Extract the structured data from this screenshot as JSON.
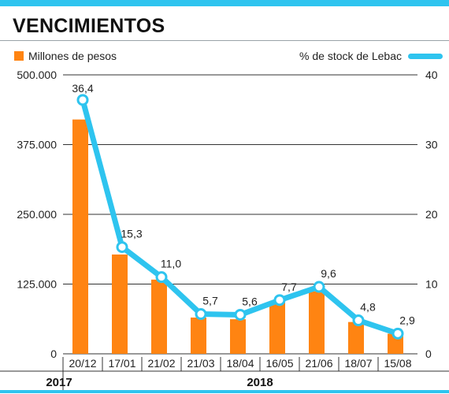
{
  "title": "VENCIMIENTOS",
  "legend": {
    "bars": "Millones de pesos",
    "line": "% de stock de Lebac"
  },
  "colors": {
    "accent": "#2ec4ef",
    "bar": "#ff8412",
    "grid": "#333333"
  },
  "chart_data": {
    "type": "bar",
    "categories": [
      "20/12",
      "17/01",
      "21/02",
      "21/03",
      "18/04",
      "16/05",
      "21/06",
      "18/07",
      "15/08"
    ],
    "series": [
      {
        "name": "Millones de pesos",
        "type": "bar",
        "axis": "left",
        "values": [
          420000,
          178000,
          133000,
          65000,
          62000,
          92000,
          112000,
          57000,
          36000
        ]
      },
      {
        "name": "% de stock de Lebac",
        "type": "line",
        "axis": "right",
        "values": [
          36.4,
          15.3,
          11.0,
          5.7,
          5.6,
          7.7,
          9.6,
          4.8,
          2.9
        ],
        "labels": [
          "36,4",
          "15,3",
          "11,0",
          "5,7",
          "5,6",
          "7,7",
          "9,6",
          "4,8",
          "2,9"
        ]
      }
    ],
    "y_left": {
      "range": [
        0,
        500000
      ],
      "ticks": [
        0,
        125000,
        250000,
        375000,
        500000
      ],
      "tick_labels": [
        "0",
        "125.000",
        "250.000",
        "375.000",
        "500.000"
      ]
    },
    "y_right": {
      "range": [
        0,
        40
      ],
      "ticks": [
        0,
        10,
        20,
        30,
        40
      ],
      "tick_labels": [
        "0",
        "10",
        "20",
        "30",
        "40"
      ]
    },
    "year_groups": [
      {
        "label": "2017",
        "from": 0,
        "to": 0
      },
      {
        "label": "2018",
        "from": 1,
        "to": 8
      }
    ],
    "grid": true,
    "legend_position": "top"
  }
}
